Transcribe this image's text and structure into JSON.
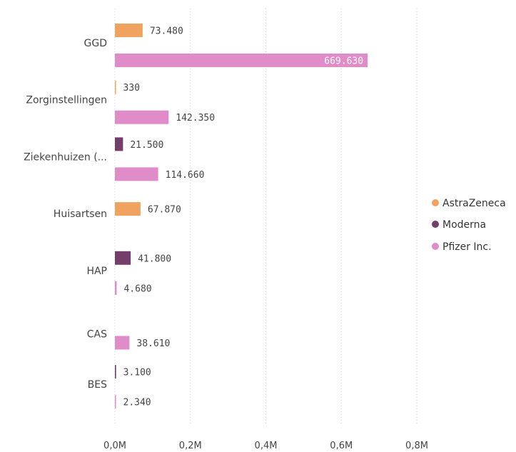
{
  "chart_data": {
    "type": "bar",
    "orientation": "horizontal",
    "categories": [
      "GGD",
      "Zorginstellingen",
      "Ziekenhuizen (...",
      "Huisartsen",
      "HAP",
      "CAS",
      "BES"
    ],
    "series": [
      {
        "name": "AstraZeneca",
        "color": "#F0A35E",
        "values": [
          73480,
          330,
          null,
          67870,
          null,
          null,
          null
        ]
      },
      {
        "name": "Moderna",
        "color": "#743D6A",
        "values": [
          null,
          null,
          21500,
          null,
          41800,
          null,
          3100
        ]
      },
      {
        "name": "Pfizer Inc.",
        "color": "#E08CC8",
        "values": [
          669630,
          142350,
          114660,
          null,
          4680,
          38610,
          2340
        ]
      }
    ],
    "data_labels": {
      "AstraZeneca": [
        "73.480",
        "330",
        "",
        "67.870",
        "",
        "",
        ""
      ],
      "Moderna": [
        "",
        "",
        "21.500",
        "",
        "41.800",
        "",
        "3.100"
      ],
      "Pfizer Inc.": [
        "669.630",
        "142.350",
        "114.660",
        "",
        "4.680",
        "38.610",
        "2.340"
      ]
    },
    "x_ticks": [
      0,
      200000,
      400000,
      600000,
      800000
    ],
    "x_tick_labels": [
      "0,0M",
      "0,2M",
      "0,4M",
      "0,6M",
      "0,8M"
    ],
    "xlim": [
      0,
      800000
    ],
    "grid": true,
    "legend_position": "right"
  }
}
